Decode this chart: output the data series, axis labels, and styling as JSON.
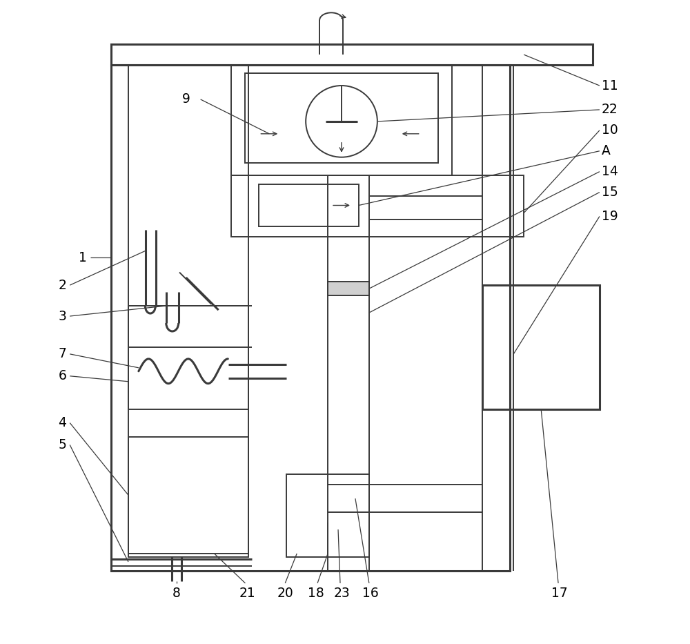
{
  "bg_color": "#ffffff",
  "line_color": "#3a3a3a",
  "lw": 1.4,
  "lw2": 2.2,
  "figsize": [
    10.0,
    9.33
  ],
  "dpi": 100
}
